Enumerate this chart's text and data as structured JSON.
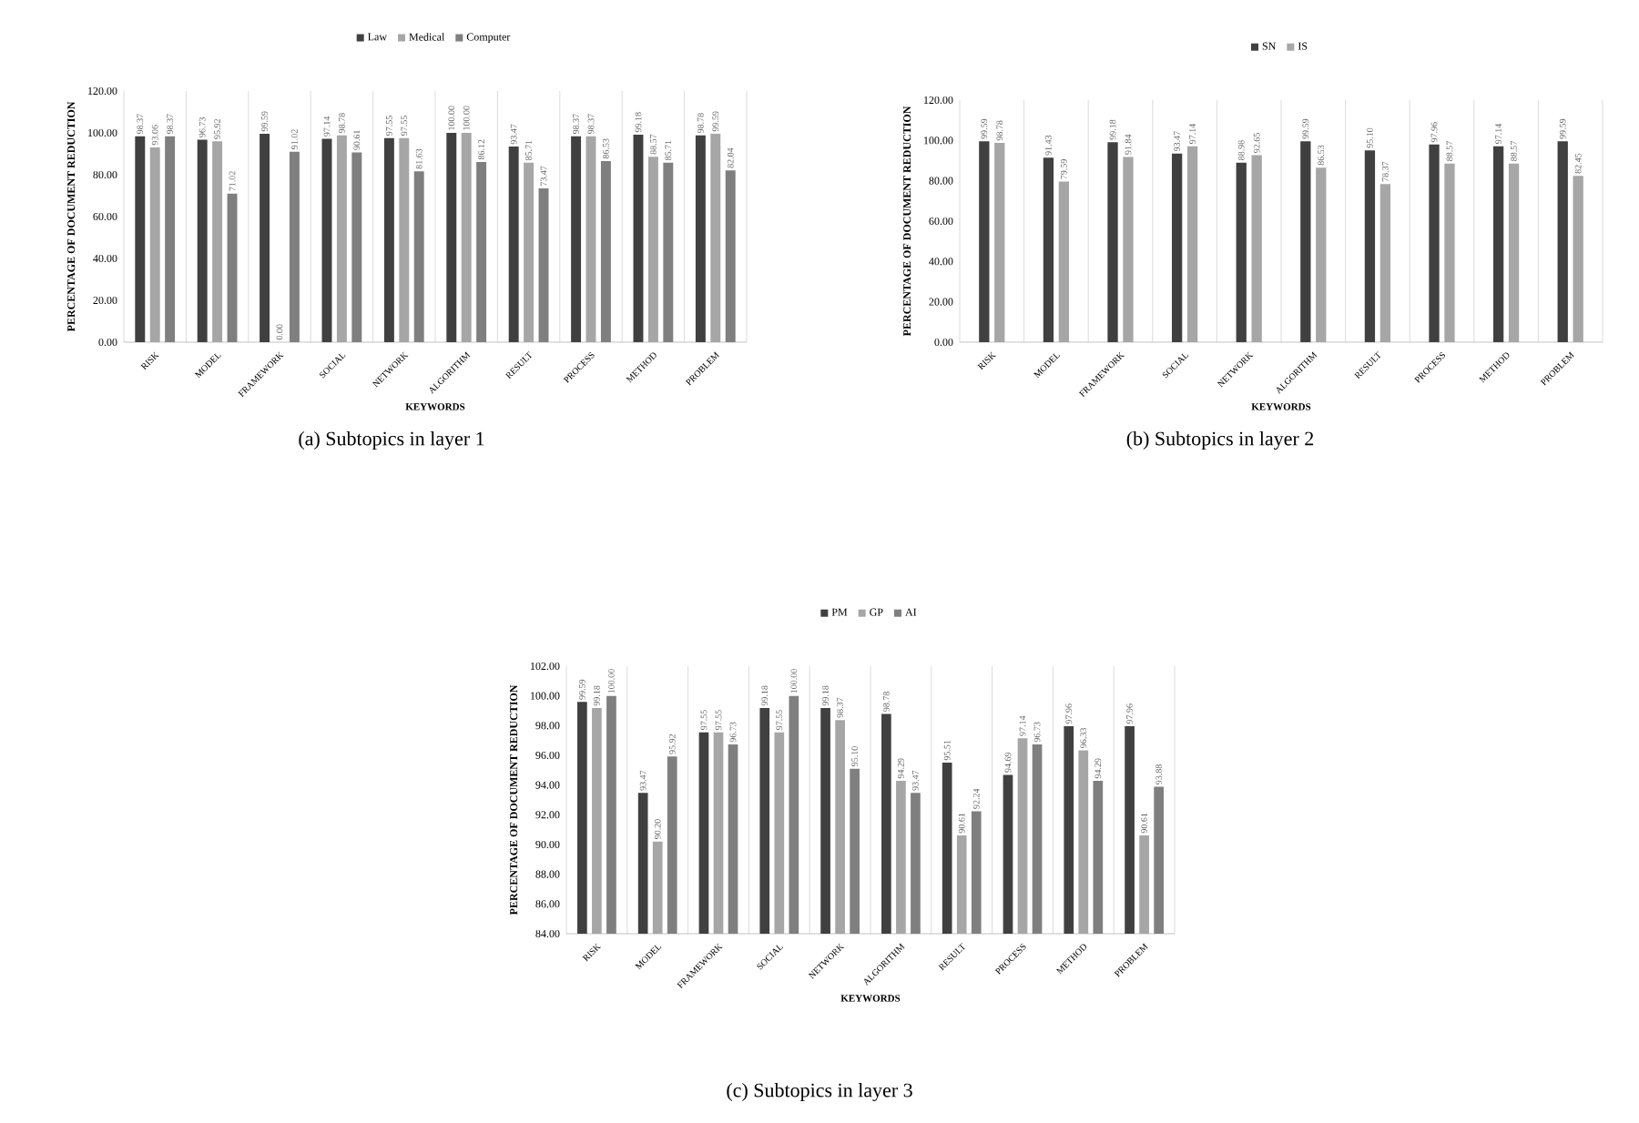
{
  "chart_data": [
    {
      "type": "bar",
      "xlabel": "KEYWORDS",
      "ylabel": "PERCENTAGE OF DOCUMENT REDUCTION",
      "annotations": [
        "(a) Subtopics in layer 1"
      ],
      "categories": [
        "RISK",
        "MODEL",
        "FRAMEWORK",
        "SOCIAL",
        "NETWORK",
        "ALGORITHM",
        "RESULT",
        "PROCESS",
        "METHOD",
        "PROBLEM"
      ],
      "series": [
        {
          "name": "Law",
          "color": "#404040",
          "values": [
            98.37,
            96.73,
            99.59,
            97.14,
            97.55,
            100.0,
            93.47,
            98.37,
            99.18,
            98.78
          ],
          "value_labels": [
            "98.37",
            "96.73",
            "99.59",
            "97.14",
            "97.55",
            "100.00",
            "93.47",
            "98.37",
            "99.18",
            "98.78"
          ]
        },
        {
          "name": "Medical",
          "color": "#a6a6a6",
          "values": [
            93.06,
            95.92,
            0.0,
            98.78,
            97.55,
            100.0,
            85.71,
            98.37,
            88.57,
            99.59
          ],
          "value_labels": [
            "93.06",
            "95.92",
            "0.00",
            "98.78",
            "97.55",
            "100.00",
            "85.71",
            "98.37",
            "88.57",
            "99.59"
          ]
        },
        {
          "name": "Computer",
          "color": "#7f7f7f",
          "values": [
            98.37,
            71.02,
            91.02,
            90.61,
            81.63,
            86.12,
            73.47,
            86.53,
            85.71,
            82.04
          ],
          "value_labels": [
            "98.37",
            "71.02",
            "91.02",
            "90.61",
            "81.63",
            "86.12",
            "73.47",
            "86.53",
            "85.71",
            "82.04"
          ]
        }
      ],
      "ylim": [
        0,
        120
      ],
      "yticks": [
        {
          "value": 0,
          "label": "0.00"
        },
        {
          "value": 20,
          "label": "20.00"
        },
        {
          "value": 40,
          "label": "40.00"
        },
        {
          "value": 60,
          "label": "60.00"
        },
        {
          "value": 80,
          "label": "80.00"
        },
        {
          "value": 100,
          "label": "100.00"
        },
        {
          "value": 120,
          "label": "120.00"
        }
      ],
      "grid": "x",
      "legend": "top"
    },
    {
      "type": "bar",
      "xlabel": "KEYWORDS",
      "ylabel": "PERCENTAGE OF DOCUMENT REDUCTION",
      "annotations": [
        "(b) Subtopics in layer 2"
      ],
      "categories": [
        "RISK",
        "MODEL",
        "FRAMEWORK",
        "SOCIAL",
        "NETWORK",
        "ALGORITHM",
        "RESULT",
        "PROCESS",
        "METHOD",
        "PROBLEM"
      ],
      "series": [
        {
          "name": "SN",
          "color": "#404040",
          "values": [
            99.59,
            91.43,
            99.18,
            93.47,
            88.98,
            99.59,
            95.1,
            97.96,
            97.14,
            99.59
          ],
          "value_labels": [
            "99.59",
            "91.43",
            "99.18",
            "93.47",
            "88.98",
            "99.59",
            "95.10",
            "97.96",
            "97.14",
            "99.59"
          ]
        },
        {
          "name": "IS",
          "color": "#a6a6a6",
          "values": [
            98.78,
            79.59,
            91.84,
            97.14,
            92.65,
            86.53,
            78.37,
            88.57,
            88.57,
            82.45
          ],
          "value_labels": [
            "98.78",
            "79.59",
            "91.84",
            "97.14",
            "92.65",
            "86.53",
            "78.37",
            "88.57",
            "88.57",
            "82.45"
          ]
        }
      ],
      "ylim": [
        0,
        120
      ],
      "yticks": [
        {
          "value": 0,
          "label": "0.00"
        },
        {
          "value": 20,
          "label": "20.00"
        },
        {
          "value": 40,
          "label": "40.00"
        },
        {
          "value": 60,
          "label": "60.00"
        },
        {
          "value": 80,
          "label": "80.00"
        },
        {
          "value": 100,
          "label": "100.00"
        },
        {
          "value": 120,
          "label": "120.00"
        }
      ],
      "grid": "x",
      "legend": "top"
    },
    {
      "type": "bar",
      "xlabel": "KEYWORDS",
      "ylabel": "PERCENTAGE OF DOCUMENT REDUCTION",
      "annotations": [
        "(c) Subtopics in layer 3"
      ],
      "categories": [
        "RISK",
        "MODEL",
        "FRAMEWORK",
        "SOCIAL",
        "NETWORK",
        "ALGORITHM",
        "RESULT",
        "PROCESS",
        "METHOD",
        "PROBLEM"
      ],
      "series": [
        {
          "name": "PM",
          "color": "#404040",
          "values": [
            99.59,
            93.47,
            97.55,
            99.18,
            99.18,
            98.78,
            95.51,
            94.69,
            97.96,
            97.96
          ],
          "value_labels": [
            "99.59",
            "93.47",
            "97.55",
            "99.18",
            "99.18",
            "98.78",
            "95.51",
            "94.69",
            "97.96",
            "97.96"
          ]
        },
        {
          "name": "GP",
          "color": "#a6a6a6",
          "values": [
            99.18,
            90.2,
            97.55,
            97.55,
            98.37,
            94.29,
            90.61,
            97.14,
            96.33,
            90.61
          ],
          "value_labels": [
            "99.18",
            "90.20",
            "97.55",
            "97.55",
            "98.37",
            "94.29",
            "90.61",
            "97.14",
            "96.33",
            "90.61"
          ]
        },
        {
          "name": "AI",
          "color": "#7f7f7f",
          "values": [
            100.0,
            95.92,
            96.73,
            100.0,
            95.1,
            93.47,
            92.24,
            96.73,
            94.29,
            93.88
          ],
          "value_labels": [
            "100.00",
            "95.92",
            "96.73",
            "100.00",
            "95.10",
            "93.47",
            "92.24",
            "96.73",
            "94.29",
            "93.88"
          ]
        }
      ],
      "ylim": [
        84,
        102
      ],
      "yticks": [
        {
          "value": 84,
          "label": "84.00"
        },
        {
          "value": 86,
          "label": "86.00"
        },
        {
          "value": 88,
          "label": "88.00"
        },
        {
          "value": 90,
          "label": "90.00"
        },
        {
          "value": 92,
          "label": "92.00"
        },
        {
          "value": 94,
          "label": "94.00"
        },
        {
          "value": 96,
          "label": "96.00"
        },
        {
          "value": 98,
          "label": "98.00"
        },
        {
          "value": 100,
          "label": "100.00"
        },
        {
          "value": 102,
          "label": "102.00"
        }
      ],
      "grid": "x",
      "legend": "top"
    }
  ]
}
